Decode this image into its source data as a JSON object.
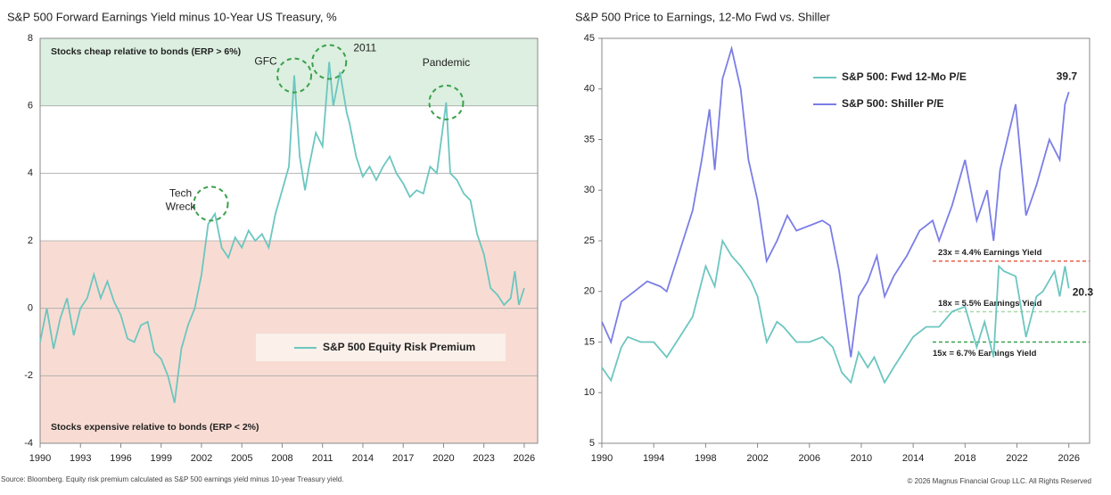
{
  "chart_data": [
    {
      "type": "line",
      "title": "S&P 500 Forward Earnings Yield minus 10-Year US Treasury, %",
      "xlim": [
        1990,
        2027
      ],
      "xticks": [
        1990,
        1993,
        1996,
        1999,
        2002,
        2005,
        2008,
        2011,
        2014,
        2017,
        2020,
        2023,
        2026
      ],
      "ylim": [
        -4,
        8
      ],
      "yticks": [
        -4,
        -2,
        0,
        2,
        4,
        6,
        8
      ],
      "grid": true,
      "legend": "lower center",
      "bands": [
        {
          "from": 6,
          "to": 8,
          "color": "#dcefe0",
          "label": "Stocks cheap relative to bonds (ERP > 6%)"
        },
        {
          "from": -4,
          "to": 2,
          "color": "#f8dcd3",
          "label": "Stocks expensive relative to bonds (ERP < 2%)"
        }
      ],
      "annotations": [
        {
          "text": "Tech\nWreck",
          "x": 2002.7,
          "y": 3.1
        },
        {
          "text": "GFC",
          "x": 2008.9,
          "y": 6.9
        },
        {
          "text": "2011",
          "x": 2011.5,
          "y": 7.3
        },
        {
          "text": "Pandemic",
          "x": 2020.2,
          "y": 6.1
        }
      ],
      "series": [
        {
          "name": "S&P 500 Equity Risk Premium",
          "color": "#6cc6c0",
          "x": [
            1990,
            1990.5,
            1991,
            1991.5,
            1992,
            1992.5,
            1993,
            1993.5,
            1994,
            1994.5,
            1995,
            1995.5,
            1996,
            1996.5,
            1997,
            1997.5,
            1998,
            1998.5,
            1999,
            1999.5,
            2000,
            2000.5,
            2001,
            2001.5,
            2002,
            2002.5,
            2003,
            2003.5,
            2004,
            2004.5,
            2005,
            2005.5,
            2006,
            2006.5,
            2007,
            2007.5,
            2008,
            2008.5,
            2008.9,
            2009.3,
            2009.7,
            2010,
            2010.5,
            2011,
            2011.5,
            2011.8,
            2012.3,
            2012.8,
            2013,
            2013.5,
            2014,
            2014.5,
            2015,
            2015.5,
            2016,
            2016.5,
            2017,
            2017.5,
            2018,
            2018.5,
            2019,
            2019.5,
            2020.2,
            2020.5,
            2021,
            2021.5,
            2022,
            2022.5,
            2023,
            2023.5,
            2024,
            2024.5,
            2025,
            2025.3,
            2025.6,
            2026
          ],
          "values": [
            -1.0,
            0.0,
            -1.2,
            -0.3,
            0.3,
            -0.8,
            0.0,
            0.3,
            1.0,
            0.3,
            0.8,
            0.2,
            -0.2,
            -0.9,
            -1.0,
            -0.5,
            -0.4,
            -1.3,
            -1.5,
            -2.0,
            -2.8,
            -1.2,
            -0.5,
            0.0,
            1.0,
            2.5,
            2.8,
            1.8,
            1.5,
            2.1,
            1.8,
            2.3,
            2.0,
            2.2,
            1.8,
            2.8,
            3.5,
            4.2,
            6.9,
            4.5,
            3.5,
            4.2,
            5.2,
            4.8,
            7.3,
            6.0,
            7.0,
            5.8,
            5.5,
            4.5,
            3.9,
            4.2,
            3.8,
            4.2,
            4.5,
            4.0,
            3.7,
            3.3,
            3.5,
            3.4,
            4.2,
            4.0,
            6.1,
            4.0,
            3.8,
            3.4,
            3.2,
            2.2,
            1.6,
            0.6,
            0.4,
            0.1,
            0.3,
            1.1,
            0.1,
            0.6
          ]
        }
      ]
    },
    {
      "type": "line",
      "title": "S&P 500 Price to Earnings, 12-Mo Fwd vs. Shiller",
      "xlim": [
        1990,
        2027.6
      ],
      "xticks": [
        1990,
        1994,
        1998,
        2002,
        2006,
        2010,
        2014,
        2018,
        2022,
        2026
      ],
      "ylim": [
        5,
        45
      ],
      "yticks": [
        5,
        10,
        15,
        20,
        25,
        30,
        35,
        40,
        45
      ],
      "grid": false,
      "legend": "upper center",
      "hlines": [
        {
          "value": 23,
          "label": "23x = 4.4% Earnings Yield",
          "color": "#e8604c",
          "x_start": 2015.5
        },
        {
          "value": 18,
          "label": "18x = 5.5% Earnings Yield",
          "color": "#a8d8a8",
          "x_start": 2015.5
        },
        {
          "value": 15,
          "label": "15x = 6.7% Earnings Yield",
          "color": "#3aa04a",
          "x_start": 2015.5
        }
      ],
      "series": [
        {
          "name": "S&P 500: Fwd 12-Mo P/E",
          "color": "#6cc6c0",
          "x": [
            1990,
            1990.7,
            1991.5,
            1992,
            1993,
            1994,
            1995,
            1996,
            1997,
            1998,
            1998.7,
            1999.3,
            2000,
            2000.7,
            2001.5,
            2002,
            2002.7,
            2003.5,
            2004,
            2005,
            2006,
            2007,
            2007.8,
            2008.5,
            2009.2,
            2009.8,
            2010.5,
            2011,
            2011.8,
            2012.5,
            2013,
            2014,
            2015,
            2016,
            2017,
            2018,
            2018.9,
            2019.5,
            2020.2,
            2020.6,
            2021,
            2021.9,
            2022.7,
            2023.5,
            2024,
            2024.9,
            2025.3,
            2025.7,
            2026
          ],
          "values": [
            12.5,
            11.2,
            14.5,
            15.5,
            15.0,
            15.0,
            13.5,
            15.5,
            17.5,
            22.5,
            20.5,
            25.0,
            23.5,
            22.5,
            21.0,
            19.5,
            15.0,
            17.0,
            16.5,
            15.0,
            15.0,
            15.5,
            14.5,
            12.0,
            11.0,
            14.0,
            12.5,
            13.5,
            11.0,
            12.5,
            13.5,
            15.5,
            16.5,
            16.5,
            18.0,
            18.5,
            14.5,
            17.0,
            13.5,
            22.5,
            22.0,
            21.5,
            15.5,
            19.5,
            20.0,
            22.0,
            19.5,
            22.5,
            20.3
          ]
        },
        {
          "name": "S&P 500: Shiller P/E",
          "color": "#7b7ee6",
          "x": [
            1990,
            1990.7,
            1991.5,
            1992.5,
            1993.5,
            1994.5,
            1995,
            1996,
            1996.5,
            1997,
            1997.7,
            1998.3,
            1998.7,
            1999.3,
            2000,
            2000.7,
            2001.3,
            2002,
            2002.7,
            2003.5,
            2004.3,
            2005,
            2006,
            2007,
            2007.6,
            2008.3,
            2009.2,
            2009.8,
            2010.5,
            2011.2,
            2011.8,
            2012.5,
            2013.5,
            2014.5,
            2015.5,
            2016,
            2017,
            2018,
            2018.9,
            2019.7,
            2020.2,
            2020.7,
            2021.9,
            2022.7,
            2023.5,
            2024.5,
            2025.3,
            2025.7,
            2026
          ],
          "values": [
            17.0,
            15.0,
            19.0,
            20.0,
            21.0,
            20.5,
            20.0,
            24.0,
            26.0,
            28.0,
            33.0,
            38.0,
            32.0,
            41.0,
            44.0,
            40.0,
            33.0,
            29.0,
            23.0,
            25.0,
            27.5,
            26.0,
            26.5,
            27.0,
            26.5,
            22.0,
            13.5,
            19.5,
            21.0,
            23.5,
            19.5,
            21.5,
            23.5,
            26.0,
            27.0,
            25.0,
            28.5,
            33.0,
            27.0,
            30.0,
            25.0,
            32.0,
            38.5,
            27.5,
            30.5,
            35.0,
            33.0,
            38.5,
            39.7
          ]
        }
      ]
    }
  ],
  "footer": {
    "source": "Source: Bloomberg. Equity risk premium calculated as S&P 500 earnings yield minus 10-year Treasury yield.",
    "copyright": "© 2026 Magnus Financial Group LLC. All Rights Reserved"
  }
}
